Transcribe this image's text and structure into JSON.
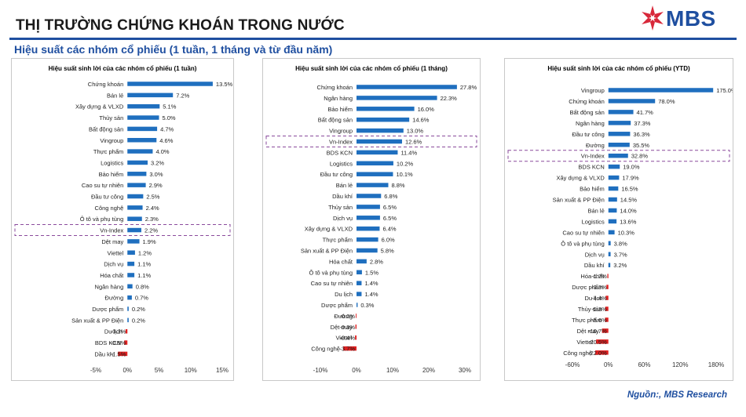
{
  "header": {
    "title": "THỊ TRƯỜNG CHỨNG KHOÁN TRONG NƯỚC",
    "logo_text": "MBS",
    "subtitle": "Hiệu suất các nhóm cổ phiếu (1 tuần, 1 tháng và từ đầu năm)"
  },
  "footer": {
    "source": "Nguồn:, MBS Research"
  },
  "colors": {
    "positive": "#1f6fbf",
    "negative": "#e02020",
    "brand": "#1f4fa0",
    "logo_red": "#d8283a",
    "highlight_border": "#8a4a9c"
  },
  "chart_data": [
    {
      "type": "bar",
      "orientation": "horizontal",
      "title": "Hiệu suất sinh lời của các nhóm cổ phiếu (1 tuần)",
      "highlight": "Vn-Index",
      "categories": [
        "Chứng khoán",
        "Bán lẻ",
        "Xây dựng & VLXD",
        "Thủy sản",
        "Bất động sản",
        "Vingroup",
        "Thực phẩm",
        "Logistics",
        "Bảo hiểm",
        "Cao su tự nhiên",
        "Đầu tư công",
        "Công nghệ",
        "Ô tô và phụ tùng",
        "Vn-Index",
        "Dệt may",
        "Viettel",
        "Dịch vụ",
        "Hóa chất",
        "Ngân hàng",
        "Đường",
        "Dược phẩm",
        "Sản xuất & PP Điện",
        "Du lịch",
        "BDS KCN",
        "Dầu khí"
      ],
      "values": [
        13.5,
        7.2,
        5.1,
        5.0,
        4.7,
        4.6,
        4.0,
        3.2,
        3.0,
        2.9,
        2.5,
        2.4,
        2.3,
        2.2,
        1.9,
        1.2,
        1.1,
        1.1,
        0.8,
        0.7,
        0.2,
        0.2,
        -0.3,
        -0.5,
        -1.5
      ],
      "value_labels": [
        "13.5%",
        "7.2%",
        "5.1%",
        "5.0%",
        "4.7%",
        "4.6%",
        "4.0%",
        "3.2%",
        "3.0%",
        "2.9%",
        "2.5%",
        "2.4%",
        "2.3%",
        "2.2%",
        "1.9%",
        "1.2%",
        "1.1%",
        "1.1%",
        "0.8%",
        "0.7%",
        "0.2%",
        "0.2%",
        "-0.3%",
        "-0.5%",
        "-1.5%"
      ],
      "xlim": [
        -5,
        15
      ],
      "ticks": [
        -5,
        0,
        5,
        10,
        15
      ],
      "tick_labels": [
        "-5%",
        "0%",
        "5%",
        "10%",
        "15%"
      ]
    },
    {
      "type": "bar",
      "orientation": "horizontal",
      "title": "Hiệu suất sinh lời của các nhóm cổ phiếu (1 tháng)",
      "highlight": "Vn-Index",
      "categories": [
        "Chứng khoán",
        "Ngân hàng",
        "Bảo hiểm",
        "Bất động sản",
        "Vingroup",
        "Vn-Index",
        "BDS KCN",
        "Logistics",
        "Đầu tư công",
        "Bán lẻ",
        "Dầu khí",
        "Thủy sản",
        "Dịch vụ",
        "Xây dựng & VLXD",
        "Thực phẩm",
        "Sản xuất & PP Điện",
        "Hóa chất",
        "Ô tô và phụ tùng",
        "Cao su tự nhiên",
        "Du lịch",
        "Dược phẩm",
        "Đường",
        "Dệt may",
        "Viettel",
        "Công nghệ"
      ],
      "values": [
        27.8,
        22.3,
        16.0,
        14.6,
        13.0,
        12.6,
        11.4,
        10.2,
        10.1,
        8.8,
        6.8,
        6.5,
        6.5,
        6.4,
        6.0,
        5.8,
        2.8,
        1.5,
        1.4,
        1.4,
        0.3,
        -0.2,
        -0.3,
        -0.4,
        -3.7
      ],
      "value_labels": [
        "27.8%",
        "22.3%",
        "16.0%",
        "14.6%",
        "13.0%",
        "12.6%",
        "11.4%",
        "10.2%",
        "10.1%",
        "8.8%",
        "6.8%",
        "6.5%",
        "6.5%",
        "6.4%",
        "6.0%",
        "5.8%",
        "2.8%",
        "1.5%",
        "1.4%",
        "1.4%",
        "0.3%",
        "-0.2%",
        "-0.3%",
        "-0.4%",
        "-3.7%"
      ],
      "xlim": [
        -10,
        30
      ],
      "ticks": [
        -10,
        0,
        10,
        20,
        30
      ],
      "tick_labels": [
        "-10%",
        "0%",
        "10%",
        "20%",
        "30%"
      ]
    },
    {
      "type": "bar",
      "orientation": "horizontal",
      "title": "Hiệu suất sinh lời của các nhóm cổ phiếu (YTD)",
      "highlight": "Vn-Index",
      "categories": [
        "Vingroup",
        "Chứng khoán",
        "Bất động sản",
        "Ngân hàng",
        "Đầu tư công",
        "Đường",
        "Vn-Index",
        "BDS KCN",
        "Xây dựng & VLXD",
        "Bảo hiểm",
        "Sản xuất & PP Điện",
        "Bán lẻ",
        "Logistics",
        "Cao su tự nhiên",
        "Ô tô và phụ tùng",
        "Dịch vụ",
        "Dầu khí",
        "Hóa chất",
        "Dược phẩm",
        "Du lịch",
        "Thủy sản",
        "Thực phẩm",
        "Dệt may",
        "Viettel",
        "Công nghệ"
      ],
      "values": [
        175.0,
        78.0,
        41.7,
        37.3,
        36.3,
        35.5,
        32.8,
        19.0,
        17.9,
        16.5,
        14.5,
        14.0,
        13.6,
        10.3,
        3.8,
        3.7,
        3.2,
        -1.7,
        -3.3,
        -4.4,
        -5.3,
        -5.6,
        -10.7,
        -20.5,
        -22.0
      ],
      "value_labels": [
        "175.0%",
        "78.0%",
        "41.7%",
        "37.3%",
        "36.3%",
        "35.5%",
        "32.8%",
        "19.0%",
        "17.9%",
        "16.5%",
        "14.5%",
        "14.0%",
        "13.6%",
        "10.3%",
        "3.8%",
        "3.7%",
        "3.2%",
        "-1.7%",
        "-3.3%",
        "-4.4%",
        "-5.3%",
        "-5.6%",
        "-10.7%",
        "-20.5%",
        "-22.0%"
      ],
      "xlim": [
        -60,
        180
      ],
      "ticks": [
        -60,
        0,
        60,
        120,
        180
      ],
      "tick_labels": [
        "-60%",
        "0%",
        "60%",
        "120%",
        "180%"
      ]
    }
  ]
}
